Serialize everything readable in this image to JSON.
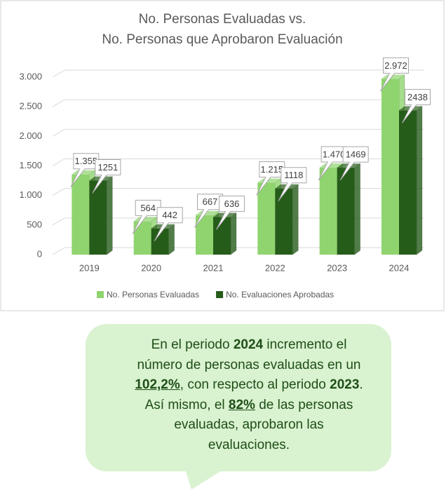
{
  "chart_data": {
    "type": "bar3d",
    "title": [
      "No. Personas Evaluadas vs.",
      "No. Personas que Aprobaron Evaluación"
    ],
    "categories": [
      "2019",
      "2020",
      "2021",
      "2022",
      "2023",
      "2024"
    ],
    "series": [
      {
        "name": "No. Personas Evaluadas",
        "color": "#8fd46e",
        "values": [
          1355,
          564,
          667,
          1215,
          1470,
          2972
        ],
        "value_labels": [
          "1.355",
          "564",
          "667",
          "1.215",
          "1.470",
          "2.972"
        ]
      },
      {
        "name": "No. Evaluaciones Aprobadas",
        "color": "#265c1a",
        "values": [
          1251,
          442,
          636,
          1118,
          1469,
          2438
        ]
      }
    ],
    "ylim": [
      0,
      3000
    ],
    "yticks": [
      0,
      500,
      {
        "value": 1000,
        "label": "1.000"
      },
      {
        "value": 1500,
        "label": "1.500"
      },
      {
        "value": 2000,
        "label": "2.000"
      },
      {
        "value": 2500,
        "label": "2.500"
      },
      {
        "value": 3000,
        "label": "3.000"
      }
    ],
    "grid": true,
    "legend": "bottom"
  },
  "bubble": {
    "lines": [
      [
        {
          "text": "En el periodo "
        },
        {
          "text": "2024",
          "bold": true
        },
        {
          "text": " incremento el"
        }
      ],
      [
        {
          "text": "número de personas evaluadas en un"
        }
      ],
      [
        {
          "text": "102,2%",
          "bold": true,
          "underline": true
        },
        {
          "text": ", con respecto al periodo "
        },
        {
          "text": "2023",
          "bold": true
        },
        {
          "text": "."
        }
      ],
      [
        {
          "text": "Así mismo, el "
        },
        {
          "text": "82%",
          "bold": true,
          "underline": true
        },
        {
          "text": " de las personas"
        }
      ],
      [
        {
          "text": "evaluadas, aprobaron las"
        }
      ],
      [
        {
          "text": "evaluaciones."
        }
      ]
    ]
  }
}
